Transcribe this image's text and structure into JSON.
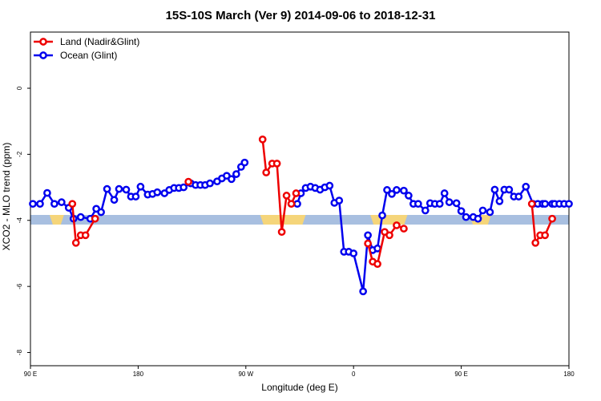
{
  "chart_data": {
    "type": "line",
    "title": "15S-10S March (Ver 9)   2014-09-06 to 2018-12-31",
    "xlabel": "Longitude (deg E)",
    "ylabel": "XCO2 - MLO trend (ppm)",
    "xlim": [
      90,
      540
    ],
    "ylim": [
      -8.4,
      1.7
    ],
    "x_ticks": [
      {
        "value": 90,
        "label": "90 E"
      },
      {
        "value": 180,
        "label": "180"
      },
      {
        "value": 270,
        "label": "90 W"
      },
      {
        "value": 360,
        "label": "0"
      },
      {
        "value": 450,
        "label": "90 E"
      },
      {
        "value": 540,
        "label": "180"
      }
    ],
    "y_ticks": [
      {
        "value": 0,
        "label": "0"
      },
      {
        "value": -2,
        "label": "-2"
      },
      {
        "value": -4,
        "label": "-4"
      },
      {
        "value": -6,
        "label": "-6"
      },
      {
        "value": -8,
        "label": "-8"
      }
    ],
    "legend_position": "top-left",
    "band": {
      "y": -3.98,
      "default_color": "#a8bfe0",
      "land_color": "#f5d57a",
      "land_ranges": [
        [
          106,
          118
        ],
        [
          282,
          320
        ],
        [
          374,
          405
        ],
        [
          457,
          475
        ]
      ]
    },
    "series": [
      {
        "name": "Land (Nadir&Glint)",
        "color": "#ee0000",
        "segments": [
          {
            "x": [
              125,
              128,
              132,
              136,
              144
            ],
            "y": [
              -3.5,
              -4.68,
              -4.45,
              -4.45,
              -3.95
            ]
          },
          {
            "x": [
              222
            ],
            "y": [
              -2.83
            ]
          },
          {
            "x": [
              284,
              287,
              292,
              296,
              300,
              304,
              308,
              312
            ],
            "y": [
              -1.55,
              -2.55,
              -2.28,
              -2.28,
              -4.35,
              -3.25,
              -3.5,
              -3.18
            ]
          },
          {
            "x": [
              372,
              376,
              380,
              386,
              390,
              396,
              402
            ],
            "y": [
              -4.7,
              -5.25,
              -5.32,
              -4.35,
              -4.45,
              -4.15,
              -4.25
            ]
          },
          {
            "x": [
              509,
              512,
              516,
              520,
              526
            ],
            "y": [
              -3.5,
              -4.68,
              -4.45,
              -4.45,
              -3.95
            ]
          }
        ]
      },
      {
        "name": "Ocean (Glint)",
        "color": "#0000ee",
        "segments": [
          {
            "x": [
              92,
              98,
              104,
              110,
              116,
              122,
              126,
              132,
              140,
              145,
              149,
              154,
              160,
              164,
              170,
              174,
              178,
              182,
              188,
              192,
              196,
              202,
              206,
              210,
              214,
              218,
              224,
              228,
              232,
              236,
              240,
              246,
              250,
              254,
              258,
              262,
              266,
              269
            ],
            "y": [
              -3.5,
              -3.5,
              -3.17,
              -3.5,
              -3.45,
              -3.62,
              -3.95,
              -3.9,
              -3.95,
              -3.65,
              -3.75,
              -3.05,
              -3.38,
              -3.05,
              -3.07,
              -3.28,
              -3.28,
              -2.98,
              -3.22,
              -3.2,
              -3.15,
              -3.18,
              -3.08,
              -3.02,
              -3.02,
              -3.0,
              -2.88,
              -2.93,
              -2.93,
              -2.93,
              -2.88,
              -2.82,
              -2.73,
              -2.65,
              -2.75,
              -2.6,
              -2.38,
              -2.25
            ]
          },
          {
            "x": [
              313,
              316,
              320,
              324,
              328,
              332,
              336,
              340,
              344,
              348,
              352,
              356,
              360,
              368,
              372,
              376,
              380,
              384,
              388,
              392,
              396,
              402,
              406,
              410,
              414,
              420,
              424,
              428,
              432,
              436,
              440,
              446,
              450,
              454,
              460,
              464,
              468,
              474,
              478,
              482,
              486,
              490,
              494,
              498,
              504,
              510,
              514,
              518,
              520,
              526,
              528,
              532,
              536,
              540
            ],
            "y": [
              -3.5,
              -3.18,
              -3.02,
              -2.98,
              -3.02,
              -3.07,
              -3.0,
              -2.95,
              -3.47,
              -3.4,
              -4.95,
              -4.95,
              -5.0,
              -6.15,
              -4.45,
              -4.9,
              -4.85,
              -3.85,
              -3.08,
              -3.2,
              -3.08,
              -3.1,
              -3.25,
              -3.5,
              -3.5,
              -3.7,
              -3.48,
              -3.5,
              -3.5,
              -3.18,
              -3.45,
              -3.48,
              -3.72,
              -3.9,
              -3.9,
              -3.95,
              -3.7,
              -3.75,
              -3.07,
              -3.42,
              -3.07,
              -3.07,
              -3.28,
              -3.28,
              -2.98,
              -3.5,
              -3.5,
              -3.5,
              -3.5,
              -3.5,
              -3.5,
              -3.5,
              -3.5,
              -3.5
            ]
          }
        ]
      }
    ]
  }
}
